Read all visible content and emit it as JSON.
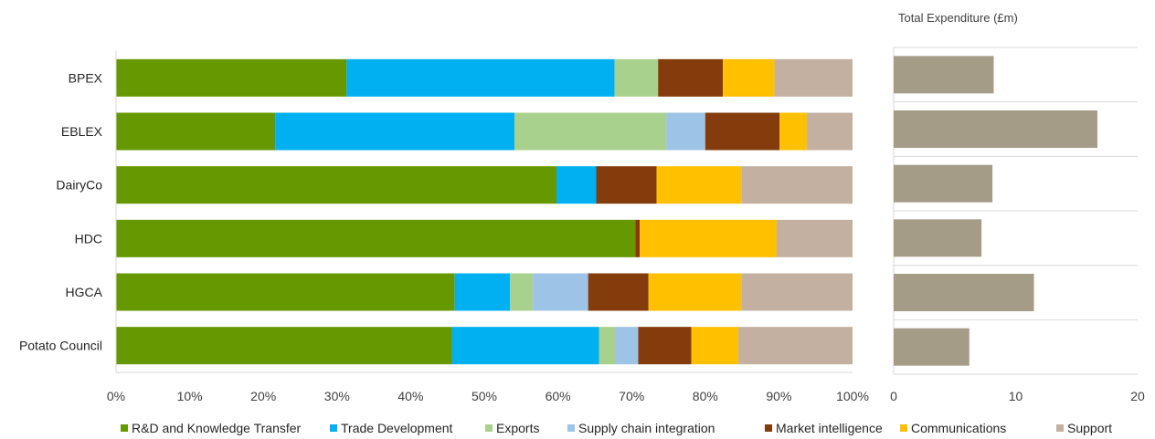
{
  "chart_data": [
    {
      "type": "bar",
      "orientation": "horizontal",
      "stacked": true,
      "categories": [
        "BPEX",
        "EBLEX",
        "DairyCo",
        "HDC",
        "HGCA",
        "Potato Council"
      ],
      "series": [
        {
          "name": "R&D and Knowledge Transfer",
          "color": "#669900",
          "values": [
            31.3,
            21.6,
            59.8,
            70.5,
            46.0,
            45.6
          ]
        },
        {
          "name": "Trade Development",
          "color": "#00b0f0",
          "values": [
            36.4,
            32.5,
            5.4,
            0.0,
            7.5,
            20.0
          ]
        },
        {
          "name": "Exports",
          "color": "#a9d18e",
          "values": [
            5.9,
            20.6,
            0.0,
            0.0,
            3.1,
            2.2
          ]
        },
        {
          "name": "Supply chain integration",
          "color": "#9dc3e6",
          "values": [
            0.0,
            5.3,
            0.0,
            0.0,
            7.5,
            3.1
          ]
        },
        {
          "name": "Market intelligence",
          "color": "#843c0c",
          "values": [
            8.8,
            10.1,
            8.2,
            0.6,
            8.2,
            7.2
          ]
        },
        {
          "name": "Communications",
          "color": "#ffc000",
          "values": [
            7.0,
            3.7,
            11.5,
            18.6,
            12.6,
            6.4
          ]
        },
        {
          "name": "Support",
          "color": "#c4b0a0",
          "values": [
            10.6,
            6.2,
            15.1,
            10.3,
            15.1,
            15.5
          ]
        }
      ],
      "xaxis": {
        "min": 0,
        "max": 100,
        "ticks": [
          "0%",
          "10%",
          "20%",
          "30%",
          "40%",
          "50%",
          "60%",
          "70%",
          "80%",
          "90%",
          "100%"
        ]
      },
      "grid": false,
      "legend": "bottom"
    },
    {
      "type": "bar",
      "orientation": "horizontal",
      "title": "Total Expenditure (£m)",
      "categories": [
        "BPEX",
        "EBLEX",
        "DairyCo",
        "HDC",
        "HGCA",
        "Potato Council"
      ],
      "values": [
        8.2,
        16.7,
        8.1,
        7.2,
        11.5,
        6.2
      ],
      "color": "#a59c88",
      "xaxis": {
        "min": 0,
        "max": 20,
        "ticks": [
          "0",
          "10",
          "20"
        ]
      },
      "grid": true
    }
  ]
}
